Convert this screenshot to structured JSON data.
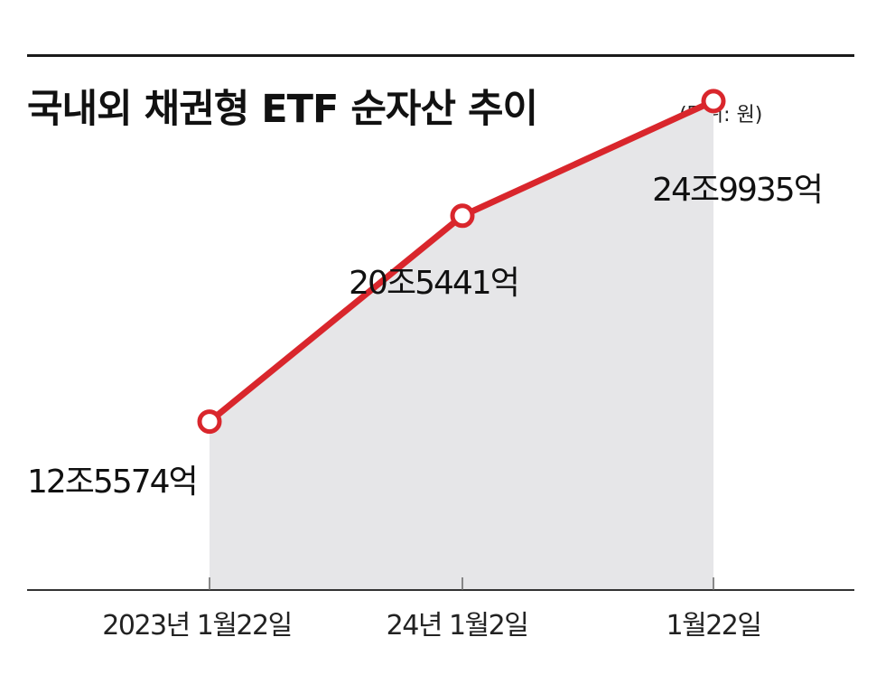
{
  "title": "국내외 채권형 ETF 순자산 추이",
  "unit": "(단위: 원)",
  "colors": {
    "line": "#d9262c",
    "area": "#e6e6e8",
    "axis": "#333333"
  },
  "chart_data": {
    "type": "line",
    "categories": [
      "2023년 1월22일",
      "24년 1월2일",
      "1월22일"
    ],
    "values": [
      125574,
      205441,
      249935
    ],
    "value_labels": [
      "12조5574억",
      "20조5441억",
      "24조9935억"
    ],
    "ylabel": "",
    "xlabel": "",
    "grid": false
  }
}
